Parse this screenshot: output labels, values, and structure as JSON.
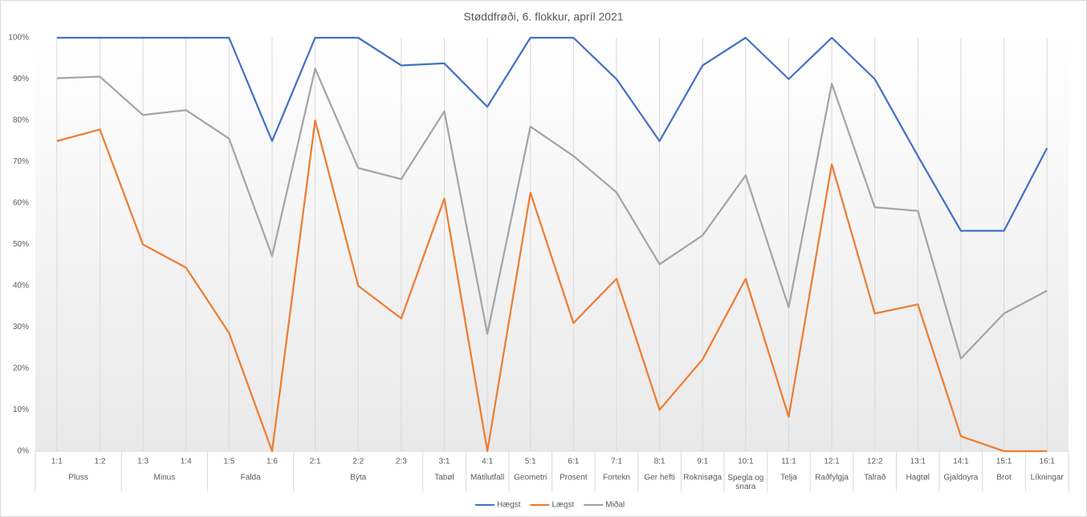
{
  "chart_data": {
    "type": "line",
    "title": "Støddfrøði, 6. flokkur, apríl 2021",
    "categories": [
      "1:1",
      "1:2",
      "1:3",
      "1:4",
      "1:5",
      "1:6",
      "2:1",
      "2:2",
      "2:3",
      "3:1",
      "4:1",
      "5:1",
      "6:1",
      "7:1",
      "8:1",
      "9:1",
      "10:1",
      "11:1",
      "12:1",
      "12:2",
      "13:1",
      "14:1",
      "15:1",
      "16:1"
    ],
    "groups": [
      {
        "name": "Pluss",
        "count": 2
      },
      {
        "name": "Minus",
        "count": 2
      },
      {
        "name": "Falda",
        "count": 2
      },
      {
        "name": "Býta",
        "count": 3
      },
      {
        "name": "Tabøl",
        "count": 1
      },
      {
        "name": "Mátilutfall",
        "count": 1
      },
      {
        "name": "Geometri",
        "count": 1
      },
      {
        "name": "Prosent",
        "count": 1
      },
      {
        "name": "Fortekn",
        "count": 1
      },
      {
        "name": "Ger hefti",
        "count": 1
      },
      {
        "name": "Roknisøga",
        "count": 1
      },
      {
        "name": "Spegla og snara",
        "count": 1
      },
      {
        "name": "Telja",
        "count": 1
      },
      {
        "name": "Raðfylgja",
        "count": 1
      },
      {
        "name": "Talrað",
        "count": 1
      },
      {
        "name": "Hagtøl",
        "count": 1
      },
      {
        "name": "Gjaldoyra",
        "count": 1
      },
      {
        "name": "Brot",
        "count": 1
      },
      {
        "name": "Líkningar",
        "count": 1
      }
    ],
    "series": [
      {
        "name": "Hægst",
        "color": "#4472c4",
        "values": [
          100,
          100,
          100,
          100,
          100,
          75,
          100,
          100,
          93.3,
          93.8,
          83.3,
          100,
          100,
          90,
          75,
          93.3,
          100,
          90,
          100,
          90,
          71.4,
          53.3,
          53.3,
          73.3
        ]
      },
      {
        "name": "Lægst",
        "color": "#ed7d31",
        "values": [
          75,
          77.8,
          50,
          44.4,
          28.6,
          0,
          80,
          40,
          32.1,
          61.1,
          0,
          62.5,
          31,
          41.7,
          10,
          22.2,
          41.7,
          8.3,
          69.4,
          33.3,
          35.5,
          3.6,
          0,
          0
        ]
      },
      {
        "name": "Miðal",
        "color": "#a5a5a5",
        "values": [
          90.2,
          90.6,
          81.3,
          82.5,
          75.6,
          47.2,
          92.5,
          68.5,
          65.8,
          82.2,
          28.4,
          78.5,
          71.4,
          62.6,
          45.2,
          52.2,
          66.7,
          34.8,
          88.9,
          59,
          58.1,
          22.4,
          33.3,
          38.8
        ]
      }
    ],
    "ylim": [
      0,
      100
    ],
    "yticks": [
      {
        "value": 0,
        "label": "0%"
      },
      {
        "value": 10,
        "label": "10%"
      },
      {
        "value": 20,
        "label": "20%"
      },
      {
        "value": 30,
        "label": "30%"
      },
      {
        "value": 40,
        "label": "40%"
      },
      {
        "value": 50,
        "label": "50%"
      },
      {
        "value": 60,
        "label": "60%"
      },
      {
        "value": 70,
        "label": "70%"
      },
      {
        "value": 80,
        "label": "80%"
      },
      {
        "value": 90,
        "label": "90%"
      },
      {
        "value": 100,
        "label": "100%"
      }
    ],
    "legend": "bottom"
  }
}
